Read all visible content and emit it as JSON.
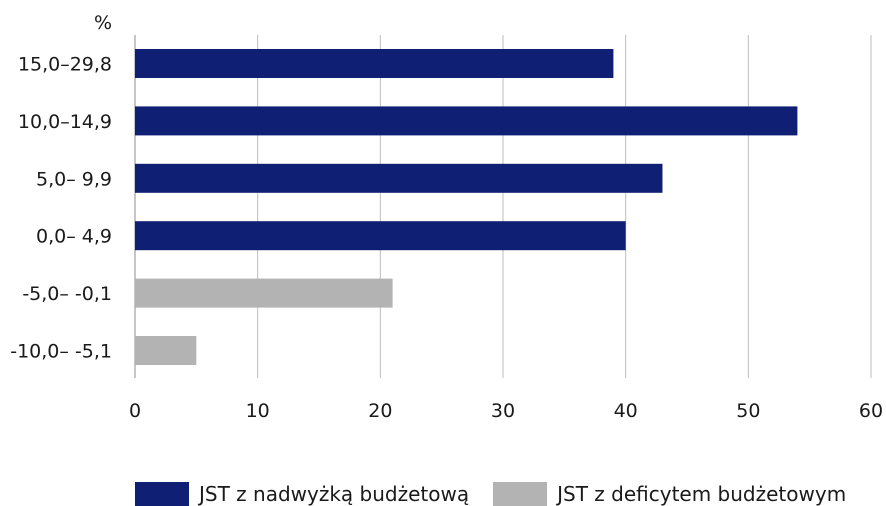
{
  "chart_data": {
    "type": "bar",
    "orientation": "horizontal",
    "unit": "%",
    "categories": [
      "15,0–29,8",
      "10,0–14,9",
      "5,0– 9,9",
      "0,0– 4,9",
      "-5,0– -0,1",
      "-10,0– -5,1"
    ],
    "values": [
      39,
      54,
      43,
      40,
      21,
      5
    ],
    "bar_series": [
      "surplus",
      "surplus",
      "surplus",
      "surplus",
      "deficit",
      "deficit"
    ],
    "series": [
      {
        "key": "surplus",
        "name": "JST z nadwyżką budżetową",
        "color": "#0f1f73"
      },
      {
        "key": "deficit",
        "name": "JST z deficytem budżetowym",
        "color": "#b3b3b3"
      }
    ],
    "xlim": [
      0,
      60
    ],
    "xticks": [
      0,
      10,
      20,
      30,
      40,
      50,
      60
    ],
    "grid": true,
    "legend_position": "bottom"
  }
}
